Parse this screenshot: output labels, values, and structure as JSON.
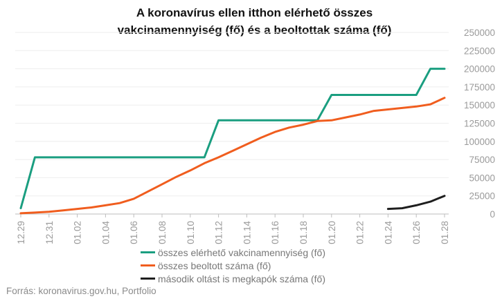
{
  "header": {
    "title_line1": "A koronavírus ellen itthon elérhető összes",
    "title_line2": "vakcinamennyiség (fő) és a beoltottak száma (fő)"
  },
  "source": "Forrás: koronavirus.gov.hu, Portfolio",
  "chart_data": {
    "type": "line",
    "title": "A koronavírus ellen itthon elérhető összes vakcinamennyiség (fő) és a beoltottak száma (fő)",
    "x_labels": [
      "12.29",
      "12.31",
      "01.02",
      "01.04",
      "01.06",
      "01.08",
      "01.10",
      "01.12",
      "01.14",
      "01.16",
      "01.18",
      "01.20",
      "01.22",
      "01.24",
      "01.26",
      "01.28"
    ],
    "x": [
      "12.29",
      "12.30",
      "12.31",
      "01.01",
      "01.02",
      "01.03",
      "01.04",
      "01.05",
      "01.06",
      "01.07",
      "01.08",
      "01.09",
      "01.10",
      "01.11",
      "01.12",
      "01.13",
      "01.14",
      "01.15",
      "01.16",
      "01.17",
      "01.18",
      "01.19",
      "01.20",
      "01.21",
      "01.22",
      "01.23",
      "01.24",
      "01.25",
      "01.26",
      "01.27",
      "01.28"
    ],
    "ylim": [
      0,
      250000
    ],
    "y_ticks": [
      0,
      25000,
      50000,
      75000,
      100000,
      125000,
      150000,
      175000,
      200000,
      225000,
      250000
    ],
    "legend_position": "bottom-center",
    "series": [
      {
        "name": "összes elérhető vakcinamennyiség (fő)",
        "color": "#1a9e80",
        "values": [
          8000,
          78000,
          78000,
          78000,
          78000,
          78000,
          78000,
          78000,
          78000,
          78000,
          78000,
          78000,
          78000,
          78000,
          129000,
          129000,
          129000,
          129000,
          129000,
          129000,
          129000,
          129000,
          164000,
          164000,
          164000,
          164000,
          164000,
          164000,
          164000,
          200000,
          200000
        ]
      },
      {
        "name": "összes beoltott száma (fő)",
        "color": "#f05d1e",
        "values": [
          1000,
          2000,
          3000,
          5000,
          7000,
          9000,
          12000,
          15000,
          21000,
          31000,
          41000,
          51000,
          60000,
          70000,
          78000,
          87000,
          96000,
          105000,
          113000,
          119000,
          123000,
          128000,
          129000,
          133000,
          137000,
          142000,
          144000,
          146000,
          148000,
          151000,
          160000
        ]
      },
      {
        "name": "második oltást is megkapók száma (fő)",
        "color": "#1e1e1e",
        "values": [
          null,
          null,
          null,
          null,
          null,
          null,
          null,
          null,
          null,
          null,
          null,
          null,
          null,
          null,
          null,
          null,
          null,
          null,
          null,
          null,
          null,
          null,
          null,
          null,
          null,
          null,
          7000,
          8000,
          12000,
          17000,
          25000
        ]
      }
    ]
  }
}
